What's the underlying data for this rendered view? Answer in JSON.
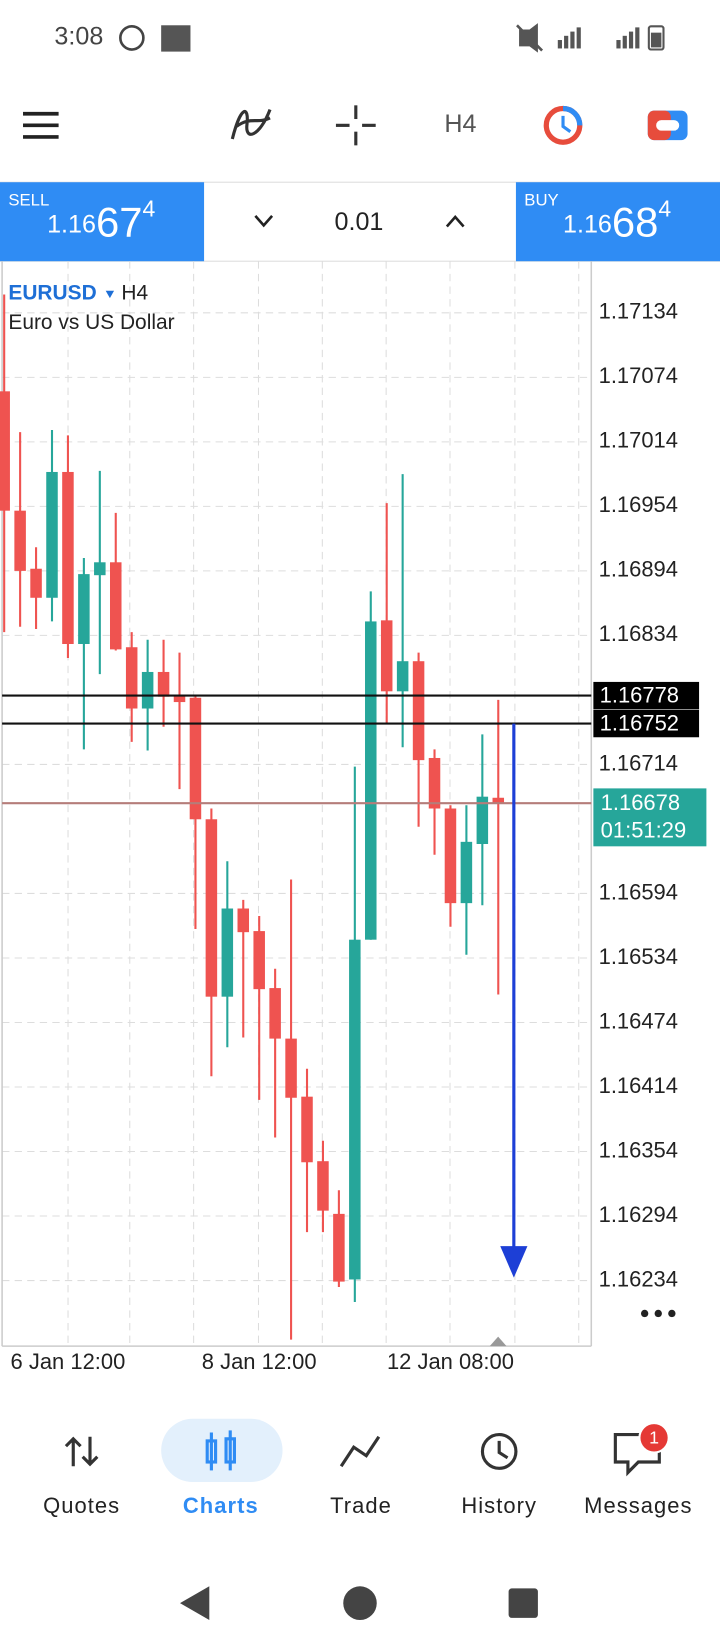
{
  "status_bar": {
    "time": "3:08"
  },
  "toolbar": {
    "timeframe": "H4"
  },
  "trade_bar": {
    "sell": {
      "label": "SELL",
      "price_prefix": "1.16",
      "price_big": "67",
      "price_sup": "4"
    },
    "lot": "0.01",
    "buy": {
      "label": "BUY",
      "price_prefix": "1.16",
      "price_big": "68",
      "price_sup": "4"
    }
  },
  "chart_data": {
    "type": "candlestick",
    "symbol": "EURUSD",
    "timeframe": "H4",
    "description": "Euro vs US Dollar",
    "up_color": "#26a69a",
    "down_color": "#ef5350",
    "ylim": [
      1.16173,
      1.17182
    ],
    "yticks": [
      1.17134,
      1.17074,
      1.17014,
      1.16954,
      1.16894,
      1.16834,
      1.16714,
      1.16594,
      1.16534,
      1.16474,
      1.16414,
      1.16354,
      1.16294,
      1.16234
    ],
    "categories": [
      null,
      null,
      null,
      null,
      "6 Jan 12:00",
      null,
      null,
      null,
      null,
      null,
      null,
      null,
      null,
      null,
      null,
      null,
      "8 Jan 12:00",
      null,
      null,
      null,
      null,
      null,
      null,
      null,
      null,
      null,
      null,
      null,
      "12 Jan 08:00",
      null,
      null,
      null
    ],
    "levels": [
      1.16778,
      1.16752
    ],
    "bid": 1.16678,
    "countdown": "01:51:29",
    "candles": [
      {
        "open": 1.17061,
        "high": 1.17151,
        "low": 1.16837,
        "close": 1.1695
      },
      {
        "open": 1.1695,
        "high": 1.17023,
        "low": 1.16842,
        "close": 1.16894
      },
      {
        "open": 1.16896,
        "high": 1.16916,
        "low": 1.1684,
        "close": 1.16869
      },
      {
        "open": 1.16869,
        "high": 1.17025,
        "low": 1.16847,
        "close": 1.16986
      },
      {
        "open": 1.16986,
        "high": 1.1702,
        "low": 1.16813,
        "close": 1.16826
      },
      {
        "open": 1.16826,
        "high": 1.16906,
        "low": 1.16728,
        "close": 1.16891
      },
      {
        "open": 1.1689,
        "high": 1.16987,
        "low": 1.16798,
        "close": 1.16902
      },
      {
        "open": 1.16902,
        "high": 1.16948,
        "low": 1.1682,
        "close": 1.16821
      },
      {
        "open": 1.16823,
        "high": 1.16837,
        "low": 1.16735,
        "close": 1.16766
      },
      {
        "open": 1.16766,
        "high": 1.1683,
        "low": 1.16727,
        "close": 1.168
      },
      {
        "open": 1.168,
        "high": 1.1683,
        "low": 1.16749,
        "close": 1.16777
      },
      {
        "open": 1.16779,
        "high": 1.16818,
        "low": 1.16691,
        "close": 1.16772
      },
      {
        "open": 1.16776,
        "high": 1.16779,
        "low": 1.16561,
        "close": 1.16663
      },
      {
        "open": 1.16663,
        "high": 1.16673,
        "low": 1.16424,
        "close": 1.16498
      },
      {
        "open": 1.16498,
        "high": 1.16624,
        "low": 1.16451,
        "close": 1.1658
      },
      {
        "open": 1.1658,
        "high": 1.16588,
        "low": 1.1646,
        "close": 1.16558
      },
      {
        "open": 1.16559,
        "high": 1.16573,
        "low": 1.16402,
        "close": 1.16505
      },
      {
        "open": 1.16506,
        "high": 1.16524,
        "low": 1.16367,
        "close": 1.16459
      },
      {
        "open": 1.16459,
        "high": 1.16607,
        "low": 1.16179,
        "close": 1.16404
      },
      {
        "open": 1.16405,
        "high": 1.16431,
        "low": 1.16279,
        "close": 1.16344
      },
      {
        "open": 1.16345,
        "high": 1.16364,
        "low": 1.16279,
        "close": 1.16299
      },
      {
        "open": 1.16296,
        "high": 1.16318,
        "low": 1.16228,
        "close": 1.16233
      },
      {
        "open": 1.16235,
        "high": 1.16712,
        "low": 1.16214,
        "close": 1.16551
      },
      {
        "open": 1.16551,
        "high": 1.16875,
        "low": 1.16551,
        "close": 1.16847
      },
      {
        "open": 1.16848,
        "high": 1.16957,
        "low": 1.16752,
        "close": 1.16782
      },
      {
        "open": 1.16782,
        "high": 1.16984,
        "low": 1.1673,
        "close": 1.1681
      },
      {
        "open": 1.1681,
        "high": 1.16818,
        "low": 1.16656,
        "close": 1.16718
      },
      {
        "open": 1.1672,
        "high": 1.16728,
        "low": 1.1663,
        "close": 1.16673
      },
      {
        "open": 1.16673,
        "high": 1.16676,
        "low": 1.16563,
        "close": 1.16585
      },
      {
        "open": 1.16585,
        "high": 1.16676,
        "low": 1.16537,
        "close": 1.16642
      },
      {
        "open": 1.1664,
        "high": 1.16742,
        "low": 1.16583,
        "close": 1.16684
      },
      {
        "open": 1.16683,
        "high": 1.16774,
        "low": 1.165,
        "close": 1.16678
      }
    ]
  },
  "nav": {
    "items": [
      "Quotes",
      "Charts",
      "Trade",
      "History",
      "Messages"
    ],
    "badge": "1"
  }
}
